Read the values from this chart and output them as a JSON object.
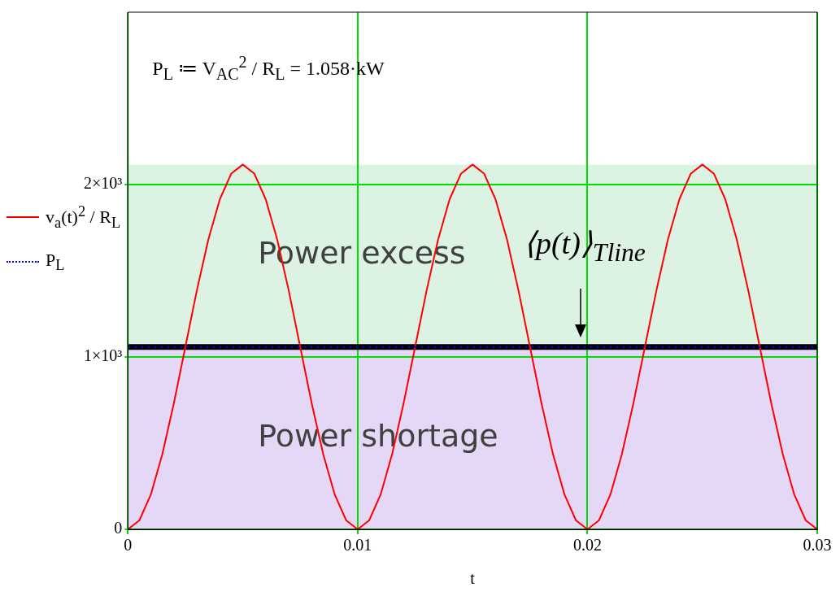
{
  "chart_data": {
    "type": "line",
    "xlabel": "t",
    "legend": "left",
    "grid": true,
    "x": [
      0,
      0.0005,
      0.001,
      0.0015,
      0.002,
      0.0025,
      0.003,
      0.0035,
      0.004,
      0.0045,
      0.005,
      0.0055,
      0.006,
      0.0065,
      0.007,
      0.0075,
      0.008,
      0.0085,
      0.009,
      0.0095,
      0.01,
      0.0105,
      0.011,
      0.0115,
      0.012,
      0.0125,
      0.013,
      0.0135,
      0.014,
      0.0145,
      0.015,
      0.0155,
      0.016,
      0.0165,
      0.017,
      0.0175,
      0.018,
      0.0185,
      0.019,
      0.0195,
      0.02,
      0.0205,
      0.021,
      0.0215,
      0.022,
      0.0225,
      0.023,
      0.0235,
      0.024,
      0.0245,
      0.025,
      0.0255,
      0.026,
      0.0265,
      0.027,
      0.0275,
      0.028,
      0.0285,
      0.029,
      0.0295,
      0.03
    ],
    "series": [
      {
        "name": "v$_{a}$(t)$^{2}$ / R$_{L}$",
        "color": "#ff0000",
        "line_style": "solid",
        "values": [
          0,
          52,
          202,
          436,
          731,
          1058,
          1385,
          1680,
          1914,
          2064,
          2116,
          2064,
          1914,
          1680,
          1385,
          1058,
          731,
          436,
          202,
          52,
          0,
          52,
          202,
          436,
          731,
          1058,
          1385,
          1680,
          1914,
          2064,
          2116,
          2064,
          1914,
          1680,
          1385,
          1058,
          731,
          436,
          202,
          52,
          0,
          52,
          202,
          436,
          731,
          1058,
          1385,
          1680,
          1914,
          2064,
          2116,
          2064,
          1914,
          1680,
          1385,
          1058,
          731,
          436,
          202,
          52,
          0
        ]
      },
      {
        "name": "P$_{L}$",
        "color": "#0000ff",
        "line_style": "dotted",
        "values": [
          1058,
          1058,
          1058,
          1058,
          1058,
          1058,
          1058,
          1058,
          1058,
          1058,
          1058,
          1058,
          1058,
          1058,
          1058,
          1058,
          1058,
          1058,
          1058,
          1058,
          1058,
          1058,
          1058,
          1058,
          1058,
          1058,
          1058,
          1058,
          1058,
          1058,
          1058,
          1058,
          1058,
          1058,
          1058,
          1058,
          1058,
          1058,
          1058,
          1058,
          1058,
          1058,
          1058,
          1058,
          1058,
          1058,
          1058,
          1058,
          1058,
          1058,
          1058,
          1058,
          1058,
          1058,
          1058,
          1058,
          1058,
          1058,
          1058,
          1058,
          1058
        ]
      }
    ],
    "xlim": [
      0,
      0.03
    ],
    "xticks": [
      0,
      0.01,
      0.02,
      0.03
    ],
    "ylim": [
      0,
      3000
    ],
    "yticks": [
      0,
      {
        "value": 1000,
        "label": "1×10³"
      },
      {
        "value": 2000,
        "label": "2×10³"
      }
    ],
    "ref_lines": [
      {
        "axis": "y",
        "value": 1058,
        "color": "#000000"
      }
    ],
    "bands": [
      {
        "axis": "y",
        "from": 1058,
        "to": 2116,
        "label": "Power excess",
        "color": "#dcf2e3"
      },
      {
        "axis": "y",
        "from": 0,
        "to": 1058,
        "label": "Power shortage",
        "color": "#e4d8f6"
      }
    ],
    "annotations": [
      "P$_{L}$ ≔ V$_{AC}$$^{2}$ / R$_{L}$ = 1.058·kW",
      {
        "text": "⟨p(t)⟩$_{Tline}$",
        "x": 0.0197,
        "y": 1058
      }
    ]
  }
}
